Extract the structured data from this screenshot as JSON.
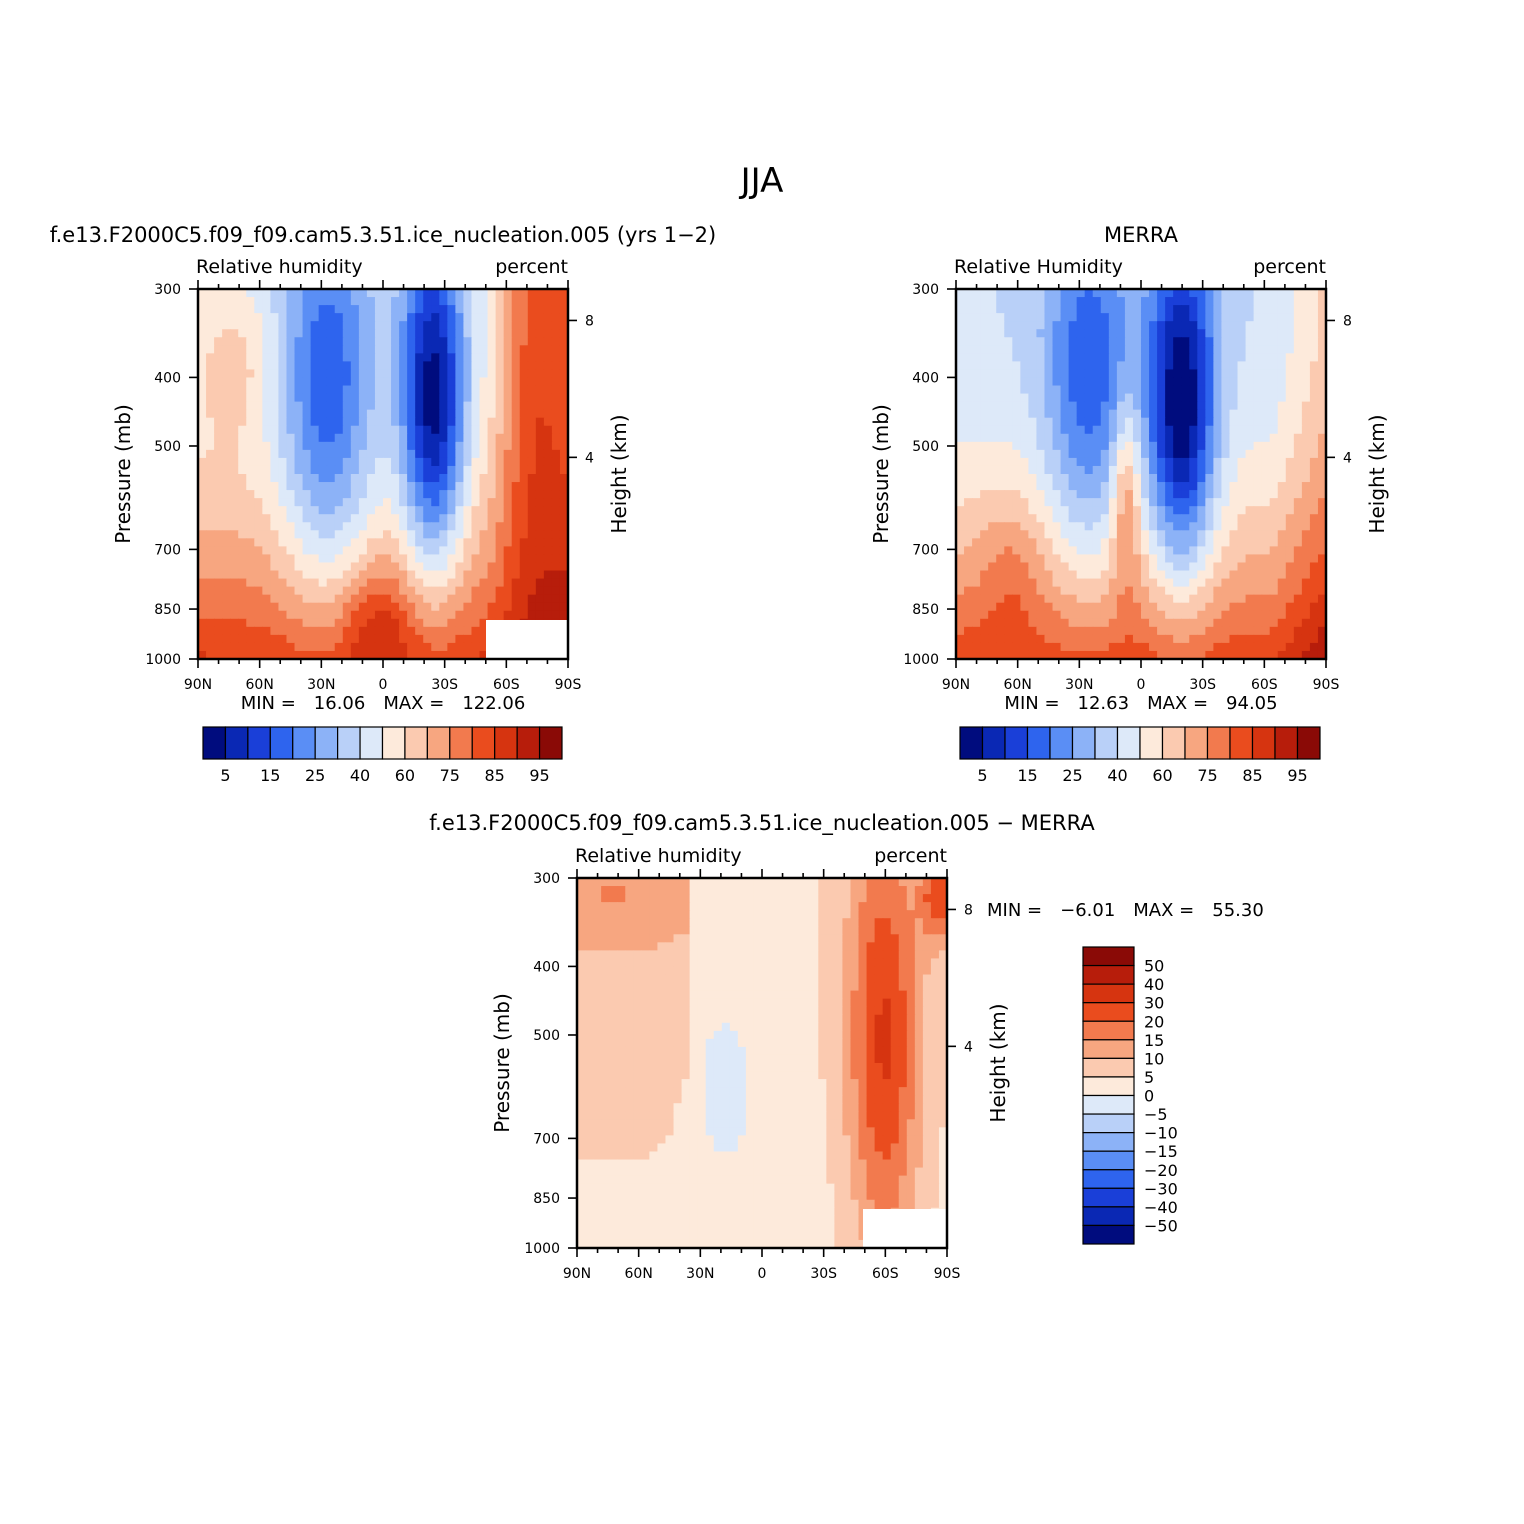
{
  "figure_title": "JJA",
  "chart_data": [
    {
      "type": "heatmap",
      "title": "f.e13.F2000C5.f09_f09.cam5.3.51.ice_nucleation.005 (yrs 1−2)",
      "left_subtitle": "Relative humidity",
      "right_subtitle": "percent",
      "xlabel": "",
      "ylabel": "Pressure (mb)",
      "ylabel_right": "Height (km)",
      "x_ticks": [
        "90N",
        "60N",
        "30N",
        "0",
        "30S",
        "60S",
        "90S"
      ],
      "y_ticks": [
        300,
        400,
        500,
        700,
        850,
        1000
      ],
      "y_tick_labels": [
        "300",
        "400",
        "500",
        "700",
        "850",
        "1000"
      ],
      "right_ticks": [
        "8",
        "4"
      ],
      "xlim": [
        90,
        -90
      ],
      "ylim": [
        1000,
        300
      ],
      "min_label": "MIN =",
      "min_value": "16.06",
      "max_label": "MAX =",
      "max_value": "122.06",
      "colorbar_levels": [
        "5",
        "15",
        "25",
        "40",
        "60",
        "75",
        "85",
        "95"
      ]
    },
    {
      "type": "heatmap",
      "title": "MERRA",
      "left_subtitle": "Relative Humidity",
      "right_subtitle": "percent",
      "xlabel": "",
      "ylabel": "Pressure (mb)",
      "ylabel_right": "Height (km)",
      "x_ticks": [
        "90N",
        "60N",
        "30N",
        "0",
        "30S",
        "60S",
        "90S"
      ],
      "y_ticks": [
        300,
        400,
        500,
        700,
        850,
        1000
      ],
      "y_tick_labels": [
        "300",
        "400",
        "500",
        "700",
        "850",
        "1000"
      ],
      "right_ticks": [
        "8",
        "4"
      ],
      "xlim": [
        90,
        -90
      ],
      "ylim": [
        1000,
        300
      ],
      "min_label": "MIN =",
      "min_value": "12.63",
      "max_label": "MAX =",
      "max_value": "94.05",
      "colorbar_levels": [
        "5",
        "15",
        "25",
        "40",
        "60",
        "75",
        "85",
        "95"
      ]
    },
    {
      "type": "heatmap",
      "title": "f.e13.F2000C5.f09_f09.cam5.3.51.ice_nucleation.005 − MERRA",
      "left_subtitle": "Relative humidity",
      "right_subtitle": "percent",
      "xlabel": "",
      "ylabel": "Pressure (mb)",
      "ylabel_right": "Height (km)",
      "x_ticks": [
        "90N",
        "60N",
        "30N",
        "0",
        "30S",
        "60S",
        "90S"
      ],
      "y_ticks": [
        300,
        400,
        500,
        700,
        850,
        1000
      ],
      "y_tick_labels": [
        "300",
        "400",
        "500",
        "700",
        "850",
        "1000"
      ],
      "right_ticks": [
        "8",
        "4"
      ],
      "xlim": [
        90,
        -90
      ],
      "ylim": [
        1000,
        300
      ],
      "min_label": "MIN =",
      "min_value": "−6.01",
      "max_label": "MAX =",
      "max_value": "55.30",
      "colorbar_levels": [
        "50",
        "40",
        "30",
        "20",
        "15",
        "10",
        "5",
        "0",
        "−5",
        "−10",
        "−15",
        "−20",
        "−30",
        "−40",
        "−50"
      ]
    }
  ],
  "colors": {
    "abs_palette": [
      "#000c7e",
      "#0a28b4",
      "#1a3fd8",
      "#2e64ee",
      "#5a8ef5",
      "#8cb2f7",
      "#b9d0f8",
      "#dde9f9",
      "#fdeadb",
      "#fbcab0",
      "#f7a680",
      "#f27a4e",
      "#ea4c1e",
      "#d63410",
      "#b71d0b",
      "#8a0a06"
    ],
    "diff_palette": [
      "#8a0a06",
      "#b71d0b",
      "#d63410",
      "#ea4c1e",
      "#f27a4e",
      "#f7a680",
      "#fbcab0",
      "#fdeadb",
      "#dde9f9",
      "#b9d0f8",
      "#8cb2f7",
      "#5a8ef5",
      "#2e64ee",
      "#1a3fd8",
      "#0a28b4",
      "#000c7e"
    ]
  }
}
